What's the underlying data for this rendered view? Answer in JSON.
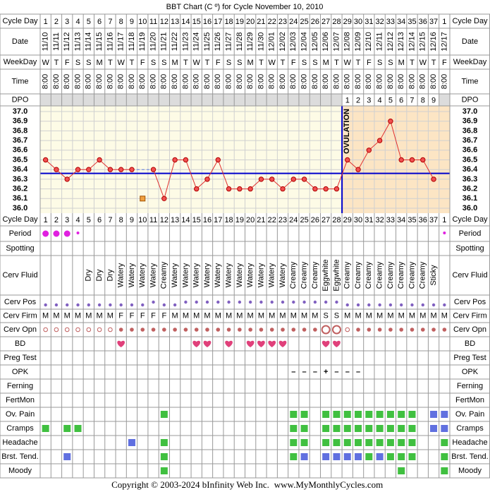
{
  "title": "BBT Chart (C º) for Cycle November 10, 2010",
  "cycle_day": {
    "label": "Cycle Day",
    "values": [
      1,
      2,
      3,
      4,
      5,
      6,
      7,
      8,
      9,
      10,
      11,
      12,
      13,
      14,
      15,
      16,
      17,
      18,
      19,
      20,
      21,
      22,
      23,
      24,
      25,
      26,
      27,
      28,
      29,
      30,
      31,
      32,
      33,
      34,
      35,
      36,
      37,
      1
    ]
  },
  "date": {
    "label": "Date",
    "values": [
      "11/10",
      "11/11",
      "11/12",
      "11/13",
      "11/14",
      "11/15",
      "11/16",
      "11/17",
      "11/18",
      "11/19",
      "11/20",
      "11/21",
      "11/22",
      "11/23",
      "11/24",
      "11/25",
      "11/26",
      "11/27",
      "11/28",
      "11/29",
      "11/30",
      "12/01",
      "12/02",
      "12/03",
      "12/04",
      "12/05",
      "12/06",
      "12/07",
      "12/08",
      "12/09",
      "12/10",
      "12/11",
      "12/12",
      "12/13",
      "12/14",
      "12/15",
      "12/16",
      "12/17"
    ]
  },
  "weekday": {
    "label": "WeekDay",
    "values": [
      "W",
      "T",
      "F",
      "S",
      "S",
      "M",
      "T",
      "W",
      "T",
      "F",
      "S",
      "S",
      "M",
      "T",
      "W",
      "T",
      "F",
      "S",
      "S",
      "M",
      "T",
      "W",
      "T",
      "F",
      "S",
      "S",
      "M",
      "T",
      "W",
      "T",
      "F",
      "S",
      "S",
      "M",
      "T",
      "W",
      "T",
      "F"
    ]
  },
  "time": {
    "label": "Time",
    "values": [
      "8:00",
      "8:00",
      "8:00",
      "8:00",
      "8:00",
      "8:00",
      "8:00",
      "8:00",
      "8:00",
      "8:00",
      "8:00",
      "8:00",
      "8:00",
      "8:00",
      "8:00",
      "8:00",
      "8:00",
      "8:00",
      "8:00",
      "8:00",
      "8:00",
      "8:00",
      "8:00",
      "8:00",
      "8:00",
      "8:00",
      "8:00",
      "8:00",
      "8:00",
      "8:00",
      "8:00",
      "8:00",
      "8:00",
      "8:00",
      "8:00",
      "8:00",
      "8:00",
      "8:00"
    ]
  },
  "dpo": {
    "label": "DPO",
    "values": [
      null,
      null,
      null,
      null,
      null,
      null,
      null,
      null,
      null,
      null,
      null,
      null,
      null,
      null,
      null,
      null,
      null,
      null,
      null,
      null,
      null,
      null,
      null,
      null,
      null,
      null,
      null,
      null,
      1,
      2,
      3,
      4,
      5,
      6,
      7,
      8,
      9,
      null
    ]
  },
  "temperature": {
    "ylim": [
      36.0,
      37.0
    ],
    "yticks": [
      {
        "value": 37.0,
        "label": "37.0"
      },
      36.9,
      36.8,
      36.7,
      36.6,
      36.5,
      36.4,
      36.3,
      36.2,
      36.1,
      {
        "value": 36.0,
        "label": "36.0"
      }
    ],
    "values": [
      36.5,
      36.4,
      36.3,
      36.4,
      36.4,
      36.5,
      36.4,
      36.4,
      36.4,
      null,
      36.4,
      36.1,
      36.5,
      36.5,
      36.2,
      36.3,
      36.5,
      36.2,
      36.2,
      36.2,
      36.3,
      36.3,
      36.2,
      36.3,
      36.3,
      36.2,
      36.2,
      36.2,
      36.5,
      36.4,
      36.6,
      36.7,
      36.9,
      36.5,
      36.5,
      36.5,
      36.3,
      null
    ],
    "excluded_values": [
      null,
      null,
      null,
      null,
      null,
      null,
      null,
      null,
      null,
      36.1,
      null,
      null,
      null,
      null,
      null,
      null,
      null,
      null,
      null,
      null,
      null,
      null,
      null,
      null,
      null,
      null,
      null,
      null,
      null,
      null,
      null,
      null,
      null,
      null,
      null,
      null,
      null,
      null
    ],
    "coverline": 36.36,
    "ovulation_label": "OVULATION"
  },
  "observations": [
    {
      "label": "Period",
      "kind": "dot",
      "values": [
        3,
        3,
        3,
        1,
        null,
        null,
        null,
        null,
        null,
        null,
        null,
        null,
        null,
        null,
        null,
        null,
        null,
        null,
        null,
        null,
        null,
        null,
        null,
        null,
        null,
        null,
        null,
        null,
        null,
        null,
        null,
        null,
        null,
        null,
        null,
        null,
        null,
        1
      ]
    },
    {
      "label": "Spotting",
      "kind": "none"
    },
    {
      "label": "Cerv Fluid",
      "kind": "vertical-text",
      "values": [
        null,
        null,
        null,
        null,
        "Dry",
        "Dry",
        "Dry",
        "Watery",
        "Watery",
        "Watery",
        "Watery",
        "Creamy",
        "Watery",
        "Watery",
        "Watery",
        "Watery",
        "Watery",
        "Watery",
        "Watery",
        "Watery",
        "Watery",
        "Watery",
        "Watery",
        "Creamy",
        "Creamy",
        "Creamy",
        "Eggwhite",
        "Eggwhite",
        "Creamy",
        "Creamy",
        "Creamy",
        "Creamy",
        "Creamy",
        "Creamy",
        "Creamy",
        "Creamy",
        "Sticky",
        null
      ]
    },
    {
      "label": "Cerv Pos",
      "kind": "position",
      "values": [
        1,
        1,
        1,
        1,
        1,
        1,
        1,
        1,
        1,
        1,
        2,
        1,
        1,
        2,
        2,
        2,
        2,
        2,
        2,
        2,
        2,
        2,
        2,
        2,
        2,
        2,
        2,
        2,
        1,
        1,
        1,
        1,
        1,
        1,
        1,
        1,
        1,
        1
      ]
    },
    {
      "label": "Cerv Firm",
      "kind": "text",
      "values": [
        "M",
        "M",
        "M",
        "M",
        "M",
        "M",
        "M",
        "F",
        "F",
        "F",
        "F",
        "F",
        "M",
        "M",
        "M",
        "M",
        "M",
        "M",
        "M",
        "M",
        "M",
        "M",
        "M",
        "M",
        "M",
        "M",
        "S",
        "S",
        "M",
        "M",
        "M",
        "M",
        "M",
        "M",
        "M",
        "M",
        "M",
        "M"
      ]
    },
    {
      "label": "Cerv Opn",
      "kind": "opening",
      "values": [
        1,
        1,
        1,
        1,
        1,
        1,
        1,
        2,
        2,
        2,
        2,
        2,
        2,
        2,
        2,
        2,
        2,
        2,
        2,
        2,
        2,
        2,
        2,
        2,
        2,
        2,
        3,
        3,
        1,
        2,
        2,
        2,
        2,
        2,
        2,
        2,
        2,
        2
      ]
    },
    {
      "label": "BD",
      "kind": "heart",
      "values": [
        null,
        null,
        null,
        null,
        null,
        null,
        null,
        1,
        null,
        null,
        null,
        null,
        null,
        null,
        1,
        1,
        null,
        1,
        null,
        1,
        1,
        1,
        1,
        null,
        null,
        null,
        1,
        1,
        null,
        null,
        null,
        null,
        null,
        null,
        null,
        null,
        null,
        null
      ]
    },
    {
      "label": "Preg Test",
      "kind": "none"
    },
    {
      "label": "OPK",
      "kind": "symbol",
      "values": [
        null,
        null,
        null,
        null,
        null,
        null,
        null,
        null,
        null,
        null,
        null,
        null,
        null,
        null,
        null,
        null,
        null,
        null,
        null,
        null,
        null,
        null,
        null,
        "–",
        "–",
        "–",
        "+",
        "–",
        "–",
        "–",
        null,
        null,
        null,
        null,
        null,
        null,
        null,
        null
      ]
    },
    {
      "label": "Ferning",
      "kind": "none"
    },
    {
      "label": "FertMon",
      "kind": "none"
    },
    {
      "label": "Ov. Pain",
      "kind": "square",
      "values": [
        null,
        null,
        null,
        null,
        null,
        null,
        null,
        null,
        null,
        null,
        null,
        1,
        null,
        null,
        null,
        null,
        null,
        null,
        null,
        null,
        null,
        null,
        null,
        1,
        1,
        null,
        1,
        1,
        1,
        1,
        1,
        1,
        1,
        1,
        1,
        null,
        2,
        2
      ]
    },
    {
      "label": "Cramps",
      "kind": "square",
      "values": [
        1,
        null,
        1,
        1,
        null,
        null,
        null,
        null,
        null,
        null,
        null,
        null,
        null,
        null,
        null,
        null,
        null,
        null,
        null,
        null,
        null,
        null,
        null,
        1,
        1,
        null,
        1,
        1,
        1,
        1,
        1,
        1,
        1,
        1,
        1,
        null,
        2,
        2
      ]
    },
    {
      "label": "Headache",
      "kind": "square",
      "values": [
        null,
        null,
        null,
        null,
        null,
        null,
        null,
        null,
        2,
        null,
        null,
        1,
        null,
        null,
        null,
        null,
        null,
        null,
        null,
        null,
        null,
        null,
        null,
        1,
        1,
        null,
        1,
        1,
        1,
        1,
        1,
        1,
        1,
        1,
        1,
        null,
        null,
        1
      ]
    },
    {
      "label": "Brst. Tend.",
      "kind": "square",
      "values": [
        null,
        null,
        2,
        null,
        null,
        null,
        null,
        null,
        null,
        null,
        null,
        1,
        null,
        null,
        null,
        null,
        null,
        null,
        null,
        null,
        null,
        null,
        null,
        1,
        2,
        null,
        2,
        2,
        2,
        2,
        1,
        2,
        1,
        1,
        1,
        null,
        null,
        1
      ]
    },
    {
      "label": "Moody",
      "kind": "square",
      "values": [
        null,
        null,
        null,
        null,
        null,
        null,
        null,
        null,
        null,
        null,
        null,
        1,
        null,
        null,
        null,
        null,
        null,
        null,
        null,
        null,
        null,
        null,
        null,
        null,
        null,
        null,
        null,
        null,
        null,
        null,
        null,
        null,
        null,
        1,
        null,
        null,
        null,
        1
      ]
    }
  ],
  "footer": {
    "copyright": "Copyright © 2003-2024 bInfinity Web Inc.",
    "website": "www.MyMonthlyCycles.com"
  }
}
